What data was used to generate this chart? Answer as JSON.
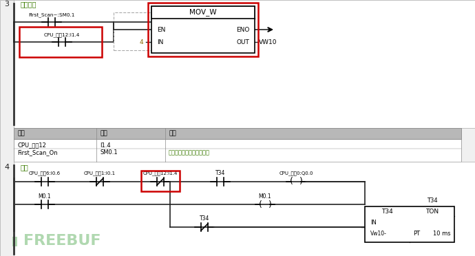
{
  "bg_color": "#f0f0f0",
  "white": "#ffffff",
  "black": "#000000",
  "green": "#3a7a00",
  "red": "#cc0000",
  "gray_header": "#b8b8b8",
  "gray_row1": "#e8e8e8",
  "gray_row2": "#f5f5f5",
  "section3_label": "3",
  "section3_title": "默认模式",
  "section4_label": "4",
  "section4_title": "运行",
  "rung3": {
    "contact1_label": "First_Scan~:SM0.1",
    "contact2_label": "CPU_输兡12:I1.4",
    "box_title": "MOV_W",
    "box_en": "EN",
    "box_eno": "ENO",
    "box_in_val": "4",
    "box_in": "IN",
    "box_out": "OUT",
    "box_out_val": "VW10"
  },
  "table": {
    "headers": [
      "符号",
      "地址",
      "注释"
    ],
    "rows": [
      [
        "CPU_输兡12",
        "I1.4",
        ""
      ],
      [
        "First_Scan_On",
        "SM0.1",
        "仅在第一个扫描周期时接通"
      ]
    ]
  },
  "rung4": {
    "contact1_label": "CPU_输兡16:I0.6",
    "contact2_label": "CPU_输11:I0.1",
    "contact3_label": "CPU_输1\u001212:I1.4",
    "contact4_label": "T34",
    "coil1_label": "CPU_输出0:Q0.0",
    "coil_m01": "M0.1",
    "contact_m01": "M0.1",
    "contact_t34_nc": "T34",
    "ton_label": "T34",
    "ton_in": "IN",
    "ton_type": "TON",
    "ton_pt_val": "Vw10",
    "ton_pt": "PT",
    "ton_time": "10 ms"
  },
  "watermark": "FREEBUF",
  "contact1_label_r4": "CPU_输兡16:I0.6",
  "contact2_label_r4": "CPU_输11:I0.1",
  "contact3_label_r4": "CPU_输1\u001212:I1.4",
  "coil1_label_r4": "CPU_输出0:Q0.0"
}
